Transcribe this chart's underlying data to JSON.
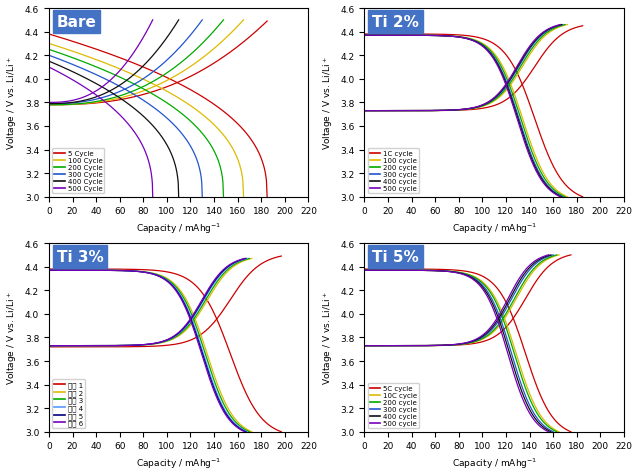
{
  "panels": [
    {
      "title": "Bare",
      "title_color": "#4472C4",
      "legend_labels": [
        "5 Cycle",
        "100 Cycle",
        "200 Cycle",
        "300 Cycle",
        "400 Cycle",
        "500 Cycle"
      ],
      "colors": [
        "#CC0000",
        "#DDBB00",
        "#00AA00",
        "#2255CC",
        "#111111",
        "#7700BB"
      ],
      "charge_caps": [
        185,
        165,
        148,
        130,
        110,
        88
      ],
      "discharge_caps": [
        185,
        165,
        148,
        130,
        110,
        88
      ],
      "charge_v_start": [
        3.78,
        3.78,
        3.78,
        3.79,
        3.79,
        3.8
      ],
      "charge_v_end": [
        4.49,
        4.5,
        4.5,
        4.5,
        4.5,
        4.5
      ],
      "discharge_v_start": [
        4.38,
        4.3,
        4.25,
        4.2,
        4.15,
        4.1
      ],
      "discharge_v_end": [
        3.0,
        3.0,
        3.0,
        3.0,
        3.0,
        3.0
      ],
      "type": "bare"
    },
    {
      "title": "Ti 2%",
      "title_color": "#4472C4",
      "legend_labels": [
        "1C cycle",
        "100 cycle",
        "200 cycle",
        "300 cycle",
        "400 cycle",
        "500 cycle"
      ],
      "colors": [
        "#CC0000",
        "#DDBB00",
        "#00AA00",
        "#2255CC",
        "#111111",
        "#7700BB"
      ],
      "charge_caps": [
        185,
        172,
        170,
        168,
        167,
        166
      ],
      "discharge_caps": [
        185,
        172,
        170,
        168,
        167,
        166
      ],
      "charge_v_start": [
        3.73,
        3.73,
        3.73,
        3.73,
        3.73,
        3.73
      ],
      "charge_v_end": [
        4.45,
        4.46,
        4.46,
        4.46,
        4.46,
        4.46
      ],
      "discharge_v_start": [
        4.38,
        4.37,
        4.37,
        4.37,
        4.37,
        4.37
      ],
      "discharge_v_end": [
        3.0,
        3.0,
        3.0,
        3.0,
        3.0,
        3.0
      ],
      "type": "ti"
    },
    {
      "title": "Ti 3%",
      "title_color": "#4472C4",
      "legend_labels": [
        "제품 1",
        "제품 2",
        "제품 3",
        "제품 4",
        "제품 5",
        "제품 6"
      ],
      "colors": [
        "#CC0000",
        "#DDBB00",
        "#00AA00",
        "#5599FF",
        "#000080",
        "#7700BB"
      ],
      "charge_caps": [
        197,
        172,
        170,
        168,
        167,
        166
      ],
      "discharge_caps": [
        197,
        172,
        170,
        168,
        167,
        166
      ],
      "charge_v_start": [
        3.72,
        3.73,
        3.73,
        3.73,
        3.73,
        3.73
      ],
      "charge_v_end": [
        4.49,
        4.47,
        4.47,
        4.47,
        4.47,
        4.47
      ],
      "discharge_v_start": [
        4.38,
        4.37,
        4.37,
        4.37,
        4.37,
        4.37
      ],
      "discharge_v_end": [
        3.0,
        3.0,
        3.0,
        3.0,
        3.0,
        3.0
      ],
      "type": "ti"
    },
    {
      "title": "Ti 5%",
      "title_color": "#4472C4",
      "legend_labels": [
        "5C cycle",
        "10C cycle",
        "200 cycle",
        "300 cycle",
        "400 cycle",
        "500 cycle"
      ],
      "colors": [
        "#CC0000",
        "#DDBB00",
        "#00AA00",
        "#2255CC",
        "#111111",
        "#7700BB"
      ],
      "charge_caps": [
        175,
        165,
        163,
        160,
        158,
        156
      ],
      "discharge_caps": [
        175,
        165,
        163,
        160,
        158,
        156
      ],
      "charge_v_start": [
        3.73,
        3.73,
        3.73,
        3.73,
        3.73,
        3.73
      ],
      "charge_v_end": [
        4.5,
        4.5,
        4.5,
        4.5,
        4.5,
        4.5
      ],
      "discharge_v_start": [
        4.38,
        4.37,
        4.37,
        4.37,
        4.37,
        4.37
      ],
      "discharge_v_end": [
        3.0,
        3.0,
        3.0,
        3.0,
        3.0,
        3.0
      ],
      "type": "ti"
    }
  ],
  "xlabel": "Capacity / mAhg$^{-1}$",
  "ylabel": "Voltage / V vs. Li/Li$^+$",
  "xlim": [
    0,
    220
  ],
  "ylim": [
    3.0,
    4.6
  ],
  "xticks": [
    0,
    20,
    40,
    60,
    80,
    100,
    120,
    140,
    160,
    180,
    200,
    220
  ],
  "yticks": [
    3.0,
    3.2,
    3.4,
    3.6,
    3.8,
    4.0,
    4.2,
    4.4,
    4.6
  ]
}
